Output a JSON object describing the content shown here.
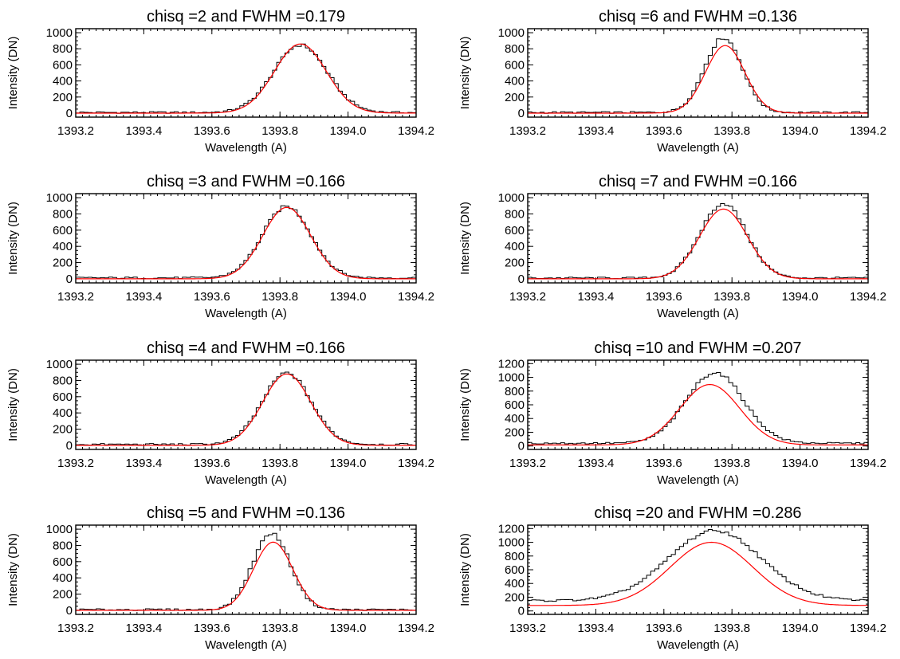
{
  "figure": {
    "colors": {
      "observed": "#000000",
      "fit": "#ff0000"
    }
  },
  "chart_data": [
    {
      "type": "line",
      "title": "chisq =2 and FWHM =0.179",
      "xlabel": "Wavelength (A)",
      "ylabel": "Intensity (DN)",
      "xlim": [
        1393.2,
        1394.2
      ],
      "ylim": [
        -50,
        1050
      ],
      "xticks": [
        "1393.2",
        "1393.4",
        "1393.6",
        "1393.8",
        "1394.0",
        "1394.2"
      ],
      "yticks": [
        "0",
        "200",
        "400",
        "600",
        "800",
        "1000"
      ],
      "series": [
        {
          "style": "histogram",
          "center": 1393.86,
          "peak": 840,
          "fwhm": 0.185,
          "base": 8
        },
        {
          "style": "fit",
          "center": 1393.86,
          "peak": 860,
          "fwhm": 0.179,
          "base": 0
        }
      ]
    },
    {
      "type": "line",
      "title": "chisq =6 and FWHM =0.136",
      "xlabel": "Wavelength (A)",
      "ylabel": "Intensity (DN)",
      "xlim": [
        1393.2,
        1394.2
      ],
      "ylim": [
        -50,
        1050
      ],
      "xticks": [
        "1393.2",
        "1393.4",
        "1393.6",
        "1393.8",
        "1394.0",
        "1394.2"
      ],
      "yticks": [
        "0",
        "200",
        "400",
        "600",
        "800",
        "1000"
      ],
      "series": [
        {
          "style": "histogram",
          "center": 1393.775,
          "peak": 930,
          "fwhm": 0.13,
          "base": 8
        },
        {
          "style": "fit",
          "center": 1393.78,
          "peak": 840,
          "fwhm": 0.136,
          "base": 0
        }
      ]
    },
    {
      "type": "line",
      "title": "chisq =3 and FWHM =0.166",
      "xlabel": "Wavelength (A)",
      "ylabel": "Intensity (DN)",
      "xlim": [
        1393.2,
        1394.2
      ],
      "ylim": [
        -50,
        1050
      ],
      "xticks": [
        "1393.2",
        "1393.4",
        "1393.6",
        "1393.8",
        "1394.0",
        "1394.2"
      ],
      "yticks": [
        "0",
        "200",
        "400",
        "600",
        "800",
        "1000"
      ],
      "series": [
        {
          "style": "histogram",
          "center": 1393.82,
          "peak": 880,
          "fwhm": 0.168,
          "base": 12
        },
        {
          "style": "fit",
          "center": 1393.82,
          "peak": 880,
          "fwhm": 0.166,
          "base": 0
        }
      ]
    },
    {
      "type": "line",
      "title": "chisq =7 and FWHM =0.166",
      "xlabel": "Wavelength (A)",
      "ylabel": "Intensity (DN)",
      "xlim": [
        1393.2,
        1394.2
      ],
      "ylim": [
        -50,
        1050
      ],
      "xticks": [
        "1393.2",
        "1393.4",
        "1393.6",
        "1393.8",
        "1394.0",
        "1394.2"
      ],
      "yticks": [
        "0",
        "200",
        "400",
        "600",
        "800",
        "1000"
      ],
      "series": [
        {
          "style": "histogram",
          "center": 1393.775,
          "peak": 920,
          "fwhm": 0.16,
          "base": 10
        },
        {
          "style": "fit",
          "center": 1393.775,
          "peak": 860,
          "fwhm": 0.166,
          "base": 0
        }
      ]
    },
    {
      "type": "line",
      "title": "chisq =4 and FWHM =0.166",
      "xlabel": "Wavelength (A)",
      "ylabel": "Intensity (DN)",
      "xlim": [
        1393.2,
        1394.2
      ],
      "ylim": [
        -50,
        1050
      ],
      "xticks": [
        "1393.2",
        "1393.4",
        "1393.6",
        "1393.8",
        "1394.0",
        "1394.2"
      ],
      "yticks": [
        "0",
        "200",
        "400",
        "600",
        "800",
        "1000"
      ],
      "series": [
        {
          "style": "histogram",
          "center": 1393.82,
          "peak": 880,
          "fwhm": 0.168,
          "base": 12
        },
        {
          "style": "fit",
          "center": 1393.82,
          "peak": 880,
          "fwhm": 0.166,
          "base": 0
        }
      ]
    },
    {
      "type": "line",
      "title": "chisq =10 and FWHM =0.207",
      "xlabel": "Wavelength (A)",
      "ylabel": "Intensity (DN)",
      "xlim": [
        1393.2,
        1394.2
      ],
      "ylim": [
        -50,
        1250
      ],
      "xticks": [
        "1393.2",
        "1393.4",
        "1393.6",
        "1393.8",
        "1394.0",
        "1394.2"
      ],
      "yticks": [
        "0",
        "200",
        "400",
        "600",
        "800",
        "1000",
        "1200"
      ],
      "series": [
        {
          "style": "histogram",
          "center": 1393.75,
          "peak": 1030,
          "fwhm": 0.2,
          "base": 40
        },
        {
          "style": "fit",
          "center": 1393.735,
          "peak": 880,
          "fwhm": 0.207,
          "base": 15
        }
      ]
    },
    {
      "type": "line",
      "title": "chisq =5 and FWHM =0.136",
      "xlabel": "Wavelength (A)",
      "ylabel": "Intensity (DN)",
      "xlim": [
        1393.2,
        1394.2
      ],
      "ylim": [
        -50,
        1050
      ],
      "xticks": [
        "1393.2",
        "1393.4",
        "1393.6",
        "1393.8",
        "1394.0",
        "1394.2"
      ],
      "yticks": [
        "0",
        "200",
        "400",
        "600",
        "800",
        "1000"
      ],
      "series": [
        {
          "style": "histogram",
          "center": 1393.775,
          "peak": 940,
          "fwhm": 0.13,
          "base": 8
        },
        {
          "style": "fit",
          "center": 1393.78,
          "peak": 840,
          "fwhm": 0.136,
          "base": 0
        }
      ]
    },
    {
      "type": "line",
      "title": "chisq =20 and FWHM =0.286",
      "xlabel": "Wavelength (A)",
      "ylabel": "Intensity (DN)",
      "xlim": [
        1393.2,
        1394.2
      ],
      "ylim": [
        -50,
        1250
      ],
      "xticks": [
        "1393.2",
        "1393.4",
        "1393.6",
        "1393.8",
        "1394.0",
        "1394.2"
      ],
      "yticks": [
        "0",
        "200",
        "400",
        "600",
        "800",
        "1000",
        "1200"
      ],
      "series": [
        {
          "style": "histogram",
          "center": 1393.75,
          "peak": 1020,
          "fwhm": 0.32,
          "base": 150
        },
        {
          "style": "fit",
          "center": 1393.74,
          "peak": 920,
          "fwhm": 0.286,
          "base": 80
        }
      ]
    }
  ]
}
